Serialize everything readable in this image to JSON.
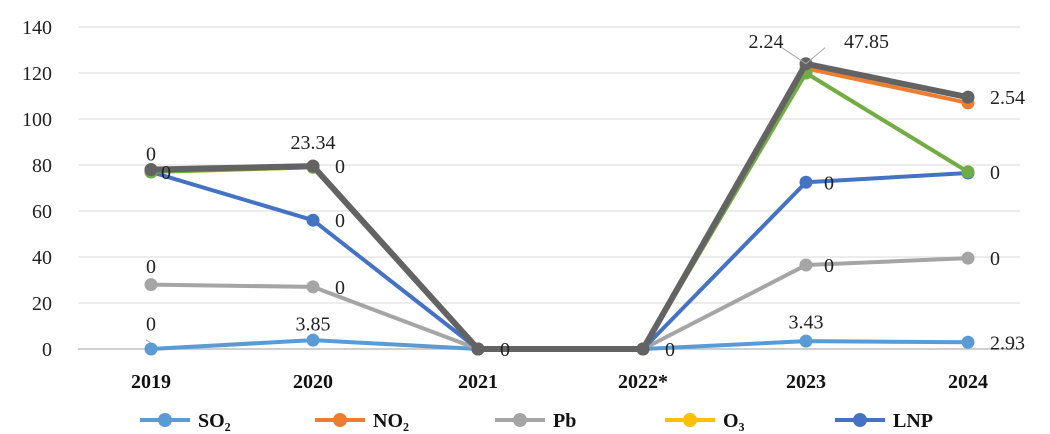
{
  "chart_data": {
    "type": "line",
    "categories": [
      "2019",
      "2020",
      "2021",
      "2022*",
      "2023",
      "2024"
    ],
    "ylim": [
      0,
      140
    ],
    "yticks": [
      0,
      20,
      40,
      60,
      80,
      100,
      120,
      140
    ],
    "grid": "horizontal",
    "legend_position": "bottom",
    "series": [
      {
        "name": "SO₂",
        "color": "#5b9bd5",
        "values": [
          0,
          3.85,
          0,
          0,
          3.43,
          2.93
        ]
      },
      {
        "name": "NO₂",
        "color": "#ed7d31",
        "values": [
          78,
          79.5,
          0,
          0,
          122,
          107
        ]
      },
      {
        "name": "Pb",
        "color": "#a5a5a5",
        "values": [
          28,
          27,
          0,
          0,
          36.5,
          39.5
        ]
      },
      {
        "name": "O₃",
        "color": "#ffc000",
        "values": [
          77,
          79,
          0,
          0,
          120,
          77
        ]
      },
      {
        "name": "LNP",
        "color": "#4472c4",
        "values": [
          77,
          56,
          0,
          0,
          72.5,
          76.5
        ]
      },
      {
        "color": "#70ad47",
        "values": [
          77,
          79,
          0,
          0,
          120,
          77
        ]
      },
      {
        "color": "#636363",
        "values": [
          78,
          79.5,
          0,
          0,
          124,
          109.5
        ]
      }
    ],
    "data_labels": [
      {
        "text": "0",
        "cat": 0,
        "y": 85,
        "dx": 0,
        "anchor": "middle"
      },
      {
        "text": "0",
        "cat": 0,
        "y": 77,
        "dx": 10,
        "anchor": "start"
      },
      {
        "text": "0",
        "cat": 0,
        "y": 36,
        "dx": 0,
        "anchor": "middle"
      },
      {
        "text": "0",
        "cat": 0,
        "y": 11,
        "dx": 0,
        "anchor": "middle"
      },
      {
        "text": "23.34",
        "cat": 1,
        "y": 90,
        "dx": 0,
        "anchor": "middle"
      },
      {
        "text": "0",
        "cat": 1,
        "y": 79.5,
        "dx": 22,
        "anchor": "start"
      },
      {
        "text": "0",
        "cat": 1,
        "y": 56,
        "dx": 22,
        "anchor": "start"
      },
      {
        "text": "0",
        "cat": 1,
        "y": 27,
        "dx": 22,
        "anchor": "start"
      },
      {
        "text": "3.85",
        "cat": 1,
        "y": 11,
        "dx": 0,
        "anchor": "middle"
      },
      {
        "text": "0",
        "cat": 2,
        "y": 0,
        "dx": 22,
        "anchor": "start"
      },
      {
        "text": "0",
        "cat": 3,
        "y": 0,
        "dx": 22,
        "anchor": "start"
      },
      {
        "text": "2.24",
        "cat": 4,
        "y": 134,
        "dx": -40,
        "anchor": "middle"
      },
      {
        "text": "47.85",
        "cat": 4,
        "y": 134,
        "dx": 38,
        "anchor": "start"
      },
      {
        "text": "0",
        "cat": 4,
        "y": 72.5,
        "dx": 18,
        "anchor": "start"
      },
      {
        "text": "0",
        "cat": 4,
        "y": 36.5,
        "dx": 18,
        "anchor": "start"
      },
      {
        "text": "3.43",
        "cat": 4,
        "y": 12,
        "dx": 0,
        "anchor": "middle"
      },
      {
        "text": "2.54",
        "cat": 5,
        "y": 109.5,
        "dx": 22,
        "anchor": "start"
      },
      {
        "text": "0",
        "cat": 5,
        "y": 77,
        "dx": 22,
        "anchor": "start"
      },
      {
        "text": "0",
        "cat": 5,
        "y": 39.5,
        "dx": 22,
        "anchor": "start"
      },
      {
        "text": "2.93",
        "cat": 5,
        "y": 2.93,
        "dx": 22,
        "anchor": "start"
      }
    ]
  }
}
